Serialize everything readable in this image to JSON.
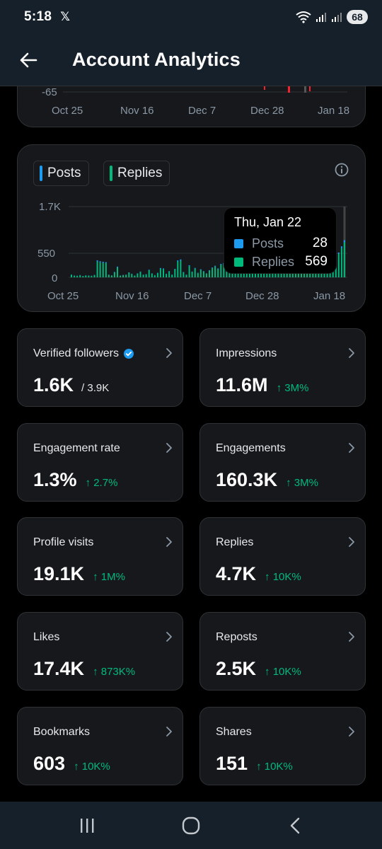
{
  "status": {
    "time": "5:18",
    "app_logo": "𝕏",
    "battery": "68"
  },
  "header": {
    "title": "Account Analytics",
    "back_icon": "arrow-left-icon"
  },
  "colors": {
    "posts": "#1d9bf0",
    "replies": "#00ba7c",
    "negative": "#f4212e",
    "positive_delta": "#00ba7c",
    "card_bg": "#16181c",
    "bar_bg": "#15202b"
  },
  "top_chart": {
    "y_tick_visible": "-65",
    "x_ticks": [
      "Oct 25",
      "Nov 16",
      "Dec 7",
      "Dec 28",
      "Jan 18"
    ]
  },
  "activity_chart": {
    "legend": [
      "Posts",
      "Replies"
    ],
    "y_ticks": [
      "1.7K",
      "550",
      "0"
    ],
    "x_ticks": [
      "Oct 25",
      "Nov 16",
      "Dec 7",
      "Dec 28",
      "Jan 18"
    ],
    "tooltip": {
      "date": "Thu, Jan 22",
      "rows": [
        {
          "name": "Posts",
          "value": "28"
        },
        {
          "name": "Replies",
          "value": "569"
        }
      ]
    }
  },
  "chart_data": {
    "type": "bar",
    "ylim": [
      0,
      1700
    ],
    "x_ticks": [
      "Oct 25",
      "Nov 16",
      "Dec 7",
      "Dec 28",
      "Jan 18"
    ],
    "series": [
      {
        "name": "Replies",
        "values": [
          60,
          40,
          35,
          50,
          30,
          45,
          40,
          35,
          55,
          380,
          360,
          350,
          340,
          60,
          45,
          120,
          240,
          40,
          55,
          60,
          110,
          80,
          40,
          90,
          130,
          60,
          70,
          170,
          90,
          50,
          100,
          210,
          200,
          80,
          140,
          60,
          190,
          380,
          400,
          120,
          60,
          270,
          130,
          210,
          100,
          180,
          140,
          90,
          160,
          220,
          260,
          200,
          300,
          320,
          260,
          340,
          350,
          420,
          290,
          380,
          150,
          210,
          230,
          190,
          180,
          160,
          210,
          170,
          140,
          200,
          240,
          180,
          250,
          260,
          310,
          270,
          230,
          260,
          240,
          280,
          200,
          260,
          300,
          320,
          380,
          420,
          360,
          400,
          450,
          500,
          560,
          480,
          520,
          569,
          700,
          840
        ]
      },
      {
        "name": "Posts",
        "values": [
          5,
          4,
          4,
          5,
          3,
          4,
          4,
          3,
          5,
          30,
          28,
          26,
          25,
          5,
          4,
          10,
          18,
          4,
          5,
          5,
          9,
          6,
          4,
          7,
          10,
          5,
          6,
          12,
          7,
          4,
          8,
          15,
          14,
          6,
          11,
          5,
          14,
          28,
          30,
          9,
          5,
          20,
          10,
          16,
          8,
          13,
          11,
          7,
          12,
          16,
          19,
          15,
          22,
          24,
          19,
          25,
          26,
          31,
          21,
          28,
          11,
          16,
          17,
          14,
          13,
          12,
          16,
          13,
          10,
          15,
          18,
          13,
          18,
          19,
          23,
          20,
          17,
          19,
          18,
          21,
          15,
          19,
          22,
          24,
          28,
          31,
          27,
          30,
          33,
          37,
          41,
          36,
          38,
          28,
          45,
          52
        ]
      }
    ]
  },
  "metrics": [
    {
      "label": "Verified followers",
      "value": "1.6K",
      "sub": "/ 3.9K",
      "delta": "",
      "verified": true
    },
    {
      "label": "Impressions",
      "value": "11.6M",
      "sub": "",
      "delta": "↑ 3M%"
    },
    {
      "label": "Engagement rate",
      "value": "1.3%",
      "sub": "",
      "delta": "↑ 2.7%"
    },
    {
      "label": "Engagements",
      "value": "160.3K",
      "sub": "",
      "delta": "↑ 3M%"
    },
    {
      "label": "Profile visits",
      "value": "19.1K",
      "sub": "",
      "delta": "↑ 1M%"
    },
    {
      "label": "Replies",
      "value": "4.7K",
      "sub": "",
      "delta": "↑ 10K%"
    },
    {
      "label": "Likes",
      "value": "17.4K",
      "sub": "",
      "delta": "↑ 873K%"
    },
    {
      "label": "Reposts",
      "value": "2.5K",
      "sub": "",
      "delta": "↑ 10K%"
    },
    {
      "label": "Bookmarks",
      "value": "603",
      "sub": "",
      "delta": "↑ 10K%"
    },
    {
      "label": "Shares",
      "value": "151",
      "sub": "",
      "delta": "↑ 10K%"
    }
  ],
  "nav": {
    "recents_icon": "recents-icon",
    "home_icon": "home-circle-icon",
    "back_icon": "nav-back-icon"
  }
}
